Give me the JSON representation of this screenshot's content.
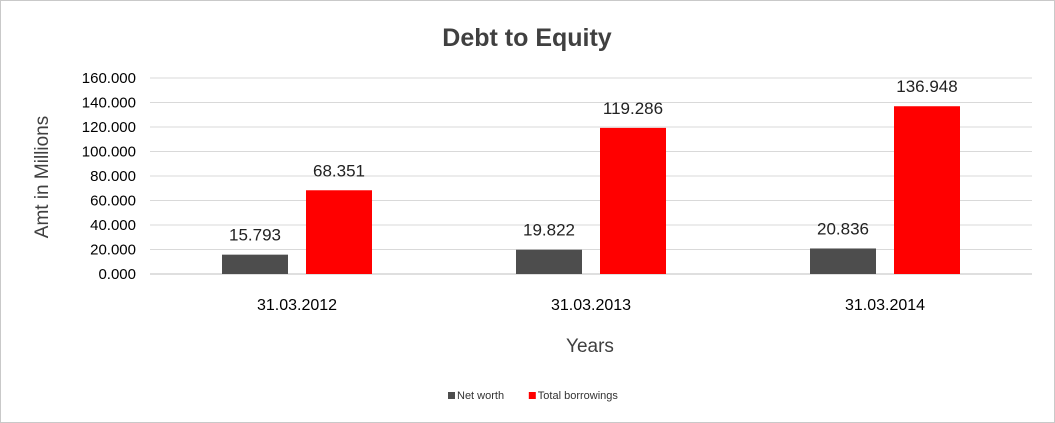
{
  "chart_data": {
    "type": "bar",
    "title": "Debt to Equity",
    "xlabel": "Years",
    "ylabel": "Amt in Millions",
    "categories": [
      "31.03.2012",
      "31.03.2013",
      "31.03.2014"
    ],
    "series": [
      {
        "name": "Net worth",
        "color": "#4d4d4d",
        "values": [
          15.793,
          19.822,
          20.836
        ],
        "labels": [
          "15.793",
          "19.822",
          "20.836"
        ]
      },
      {
        "name": "Total borrowings",
        "color": "#ff0000",
        "values": [
          68.351,
          119.286,
          136.948
        ],
        "labels": [
          "68.351",
          "119.286",
          "136.948"
        ]
      }
    ],
    "ylim": [
      0,
      160
    ],
    "yticks": [
      0,
      20,
      40,
      60,
      80,
      100,
      120,
      140,
      160
    ],
    "ytick_labels": [
      "0.000",
      "20.000",
      "40.000",
      "60.000",
      "80.000",
      "100.000",
      "120.000",
      "140.000",
      "160.000"
    ],
    "grid": true,
    "legend_position": "bottom"
  }
}
